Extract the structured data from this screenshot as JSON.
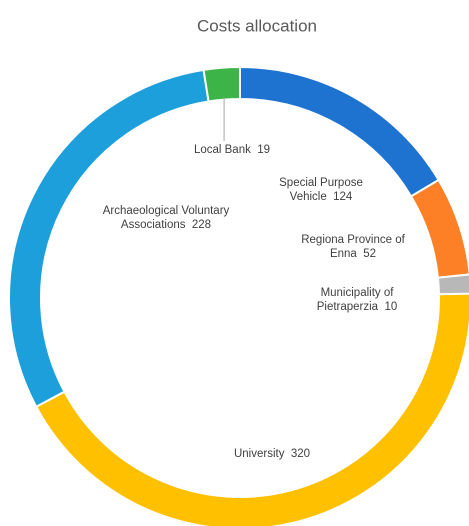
{
  "chart_data": {
    "type": "donut",
    "title": "Costs allocation",
    "categories": [
      "Special Purpose Vehicle",
      "Regiona Province of Enna",
      "Municipality of Pietraperzia",
      "University",
      "Archaeological Voluntary Associations",
      "Local Bank"
    ],
    "values": [
      124,
      52,
      10,
      320,
      228,
      19
    ],
    "colors": [
      "#1f73d0",
      "#fd7f26",
      "#b8b8b8",
      "#ffc000",
      "#1c9fda",
      "#3db448"
    ]
  }
}
